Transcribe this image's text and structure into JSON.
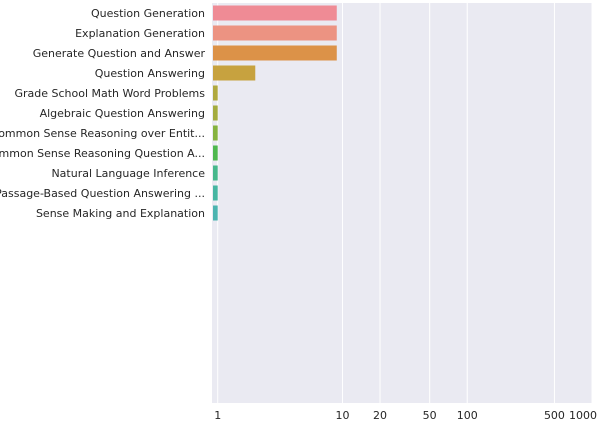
{
  "chart_data": {
    "type": "bar",
    "orientation": "horizontal",
    "x_scale": "log",
    "xlim": [
      0.9,
      1000
    ],
    "grid": true,
    "background": "#eaeaf2",
    "grid_color": "#ffffff",
    "categories": [
      "Question Generation",
      "Explanation Generation",
      "Generate Question and Answer",
      "Question Answering",
      "Grade School Math Word Problems",
      "Algebraic Question Answering",
      "Common Sense Reasoning over Entit...",
      "Common Sense Reasoning Question A...",
      "Natural Language Inference",
      "Passage-Based Question Answering ...",
      "Sense Making and Explanation"
    ],
    "values": [
      9,
      9,
      9,
      2,
      1,
      1,
      1,
      1,
      1,
      1,
      1
    ],
    "colors": [
      "#ef8b95",
      "#ec9382",
      "#dc9248",
      "#c7a23f",
      "#b0a93f",
      "#a4ac3f",
      "#86b340",
      "#4fb84f",
      "#47b88c",
      "#47b6a2",
      "#4cb4b0"
    ],
    "x_ticks": [
      {
        "value": 1,
        "label": "1"
      },
      {
        "value": 10,
        "label": "10"
      },
      {
        "value": 20,
        "label": "20"
      },
      {
        "value": 50,
        "label": "50"
      },
      {
        "value": 100,
        "label": "100"
      },
      {
        "value": 500,
        "label": "500"
      },
      {
        "value": 1000,
        "label": "1000"
      }
    ]
  }
}
